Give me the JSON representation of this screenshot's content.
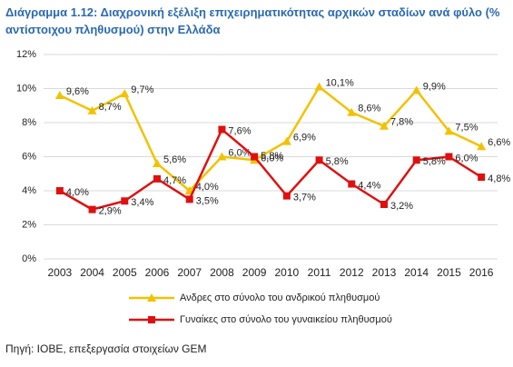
{
  "chart_data": {
    "type": "line",
    "title": "Διάγραμμα 1.12: Διαχρονική εξέλιξη επιχειρηματικότητας αρχικών σταδίων ανά φύλο (% αντίστοιχου πληθυσμού) στην Ελλάδα",
    "source": "Πηγή: ΙΟΒΕ, επεξεργασία στοιχείων GEM",
    "categories": [
      "2003",
      "2004",
      "2005",
      "2006",
      "2007",
      "2008",
      "2009",
      "2010",
      "2011",
      "2012",
      "2013",
      "2014",
      "2015",
      "2016"
    ],
    "series": [
      {
        "name": "Ανδρες στο σύνολο του ανδρικού πληθυσμού",
        "color": "#f2c200",
        "marker": "triangle",
        "values": [
          9.6,
          8.7,
          9.7,
          5.6,
          4.0,
          6.0,
          5.8,
          6.9,
          10.1,
          8.6,
          7.8,
          9.9,
          7.5,
          6.6
        ],
        "value_labels": [
          "9,6%",
          "8,7%",
          "9,7%",
          "5,6%",
          "4,0%",
          "6,0%",
          "5,8%",
          "6,9%",
          "10,1%",
          "8,6%",
          "7,8%",
          "9,9%",
          "7,5%",
          "6,6%"
        ]
      },
      {
        "name": "Γυναίκες στο σύνολο του γυναικείου πληθυσμού",
        "color": "#e01010",
        "marker": "square",
        "values": [
          4.0,
          2.9,
          3.4,
          4.7,
          3.5,
          7.6,
          6.0,
          3.7,
          5.8,
          4.4,
          3.2,
          5.8,
          6.0,
          4.8
        ],
        "value_labels": [
          "4,0%",
          "2,9%",
          "3,4%",
          "4,7%",
          "3,5%",
          "7,6%",
          "6,0%",
          "3,7%",
          "5,8%",
          "4,4%",
          "3,2%",
          "5,8%",
          "6,0%",
          "4,8%"
        ]
      }
    ],
    "ylim": [
      0,
      12
    ],
    "yticks": [
      {
        "value": 0,
        "label": "0%"
      },
      {
        "value": 2,
        "label": "2%"
      },
      {
        "value": 4,
        "label": "4%"
      },
      {
        "value": 6,
        "label": "6%"
      },
      {
        "value": 8,
        "label": "8%"
      },
      {
        "value": 10,
        "label": "10%"
      },
      {
        "value": 12,
        "label": "12%"
      }
    ],
    "grid": true
  }
}
